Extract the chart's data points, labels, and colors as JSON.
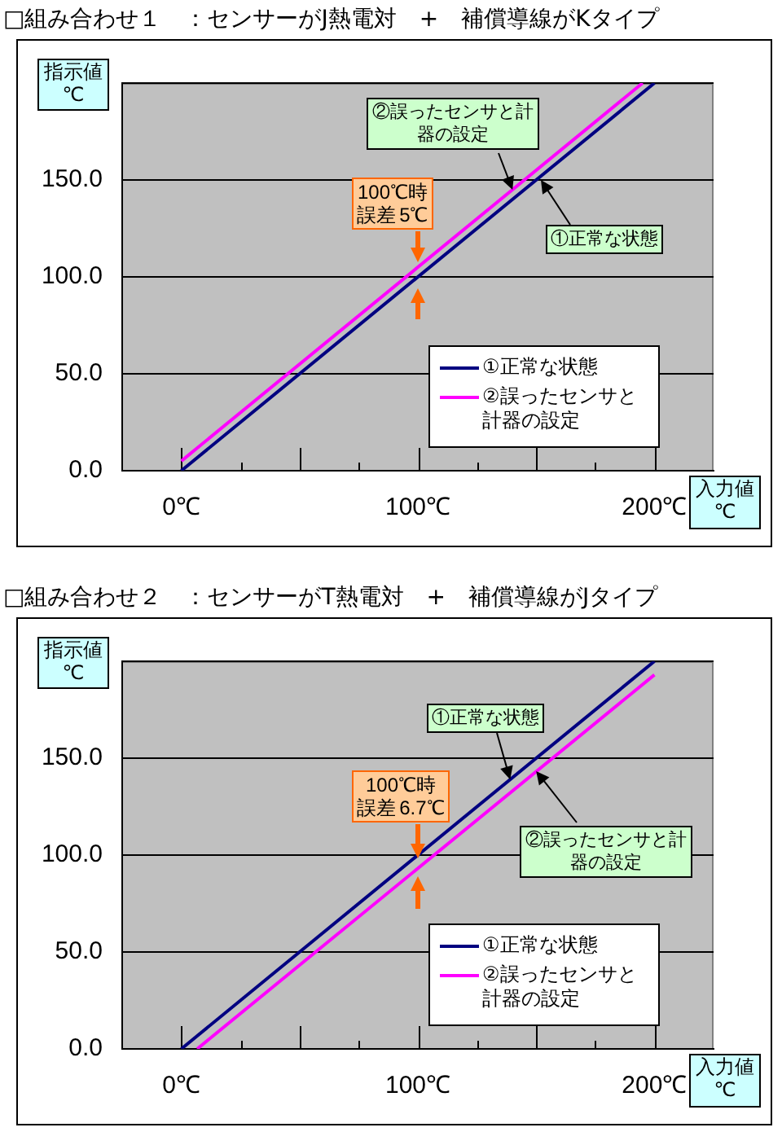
{
  "chart_data": [
    {
      "type": "line",
      "title": "□組み合わせ１　：センサーがJ熱電対　+　補償導線がKタイプ",
      "xlabel": "入力値\n℃",
      "ylabel": "指示値\n℃",
      "xlim": [
        -25,
        225
      ],
      "xticks": [
        {
          "value": 0,
          "label": "0℃"
        },
        {
          "value": 25,
          "label": null
        },
        {
          "value": 50,
          "label": null
        },
        {
          "value": 75,
          "label": null
        },
        {
          "value": 100,
          "label": "100℃"
        },
        {
          "value": 125,
          "label": null
        },
        {
          "value": 150,
          "label": null
        },
        {
          "value": 175,
          "label": null
        },
        {
          "value": 200,
          "label": "200℃"
        }
      ],
      "ylim": [
        0,
        200
      ],
      "yticks": [
        {
          "value": 0,
          "label": "0.0"
        },
        {
          "value": 50,
          "label": "50.0"
        },
        {
          "value": 100,
          "label": "100.0"
        },
        {
          "value": 150,
          "label": "150.0"
        },
        {
          "value": 200,
          "label": null
        }
      ],
      "grid": "y",
      "legend": "bottom right",
      "marker": "none",
      "series": [
        {
          "name": "①正常な状態",
          "color": "#000080",
          "x": [
            0,
            200
          ],
          "values": [
            0,
            200
          ]
        },
        {
          "name": "②誤ったセンサと計器の設定",
          "color": "#ff00ff",
          "x": [
            0,
            195
          ],
          "values": [
            5,
            200
          ]
        }
      ],
      "annotations": [
        {
          "text": "②誤ったセンサと計器の設定",
          "x": 140,
          "y": 145
        },
        {
          "text": "①正常な状態",
          "x": 152,
          "y": 150
        },
        {
          "text": "100℃時誤差 5℃",
          "x": 100,
          "y": 102.5
        }
      ]
    },
    {
      "type": "line",
      "title": "□組み合わせ２　：センサーがT熱電対　+　補償導線がJタイプ",
      "xlabel": "入力値\n℃",
      "ylabel": "指示値\n℃",
      "xlim": [
        -25,
        225
      ],
      "xticks": [
        {
          "value": 0,
          "label": "0℃"
        },
        {
          "value": 25,
          "label": null
        },
        {
          "value": 50,
          "label": null
        },
        {
          "value": 75,
          "label": null
        },
        {
          "value": 100,
          "label": "100℃"
        },
        {
          "value": 125,
          "label": null
        },
        {
          "value": 150,
          "label": null
        },
        {
          "value": 175,
          "label": null
        },
        {
          "value": 200,
          "label": "200℃"
        }
      ],
      "ylim": [
        0,
        200
      ],
      "yticks": [
        {
          "value": 0,
          "label": "0.0"
        },
        {
          "value": 50,
          "label": "50.0"
        },
        {
          "value": 100,
          "label": "100.0"
        },
        {
          "value": 150,
          "label": "150.0"
        },
        {
          "value": 200,
          "label": null
        }
      ],
      "grid": "y",
      "legend": "bottom right",
      "marker": "none",
      "series": [
        {
          "name": "①正常な状態",
          "color": "#000080",
          "x": [
            0,
            200
          ],
          "values": [
            0,
            200
          ]
        },
        {
          "name": "②誤ったセンサと計器の設定",
          "color": "#ff00ff",
          "x": [
            6.7,
            200
          ],
          "values": [
            0,
            193
          ]
        }
      ],
      "annotations": [
        {
          "text": "①正常な状態",
          "x": 139,
          "y": 139
        },
        {
          "text": "②誤ったセンサと計器の設定",
          "x": 150,
          "y": 143.3
        },
        {
          "text": "100℃時誤差 6.7℃",
          "x": 100,
          "y": 96.65
        }
      ]
    }
  ]
}
